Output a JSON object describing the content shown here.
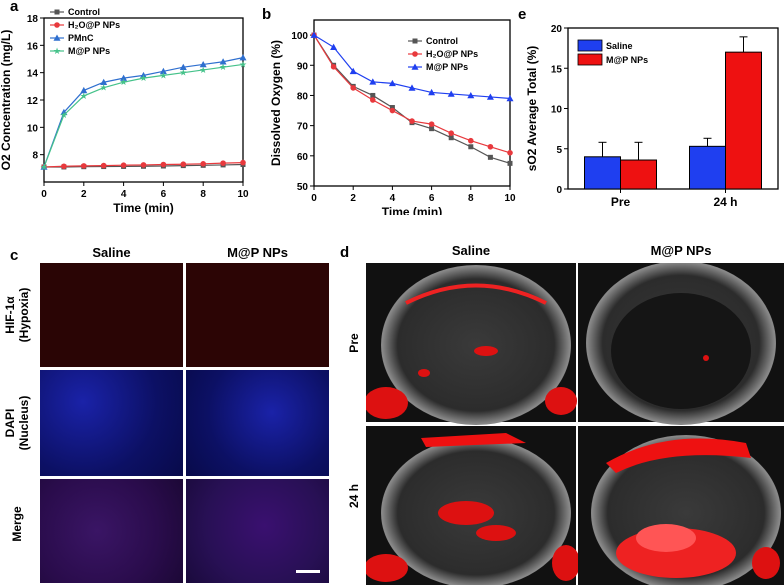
{
  "panels": {
    "a": "a",
    "b": "b",
    "c": "c",
    "d": "d",
    "e": "e"
  },
  "colors": {
    "control": "#555555",
    "h2o": "#e8393d",
    "pmnc": "#2f6fcf",
    "mp": "#45c28a",
    "blue": "#1f3ff0",
    "red": "#ee1111"
  },
  "chart_data": [
    {
      "id": "a",
      "type": "line",
      "title": "",
      "xlabel": "Time (min)",
      "ylabel": "O2 Concentration (mg/L)",
      "xlim": [
        0,
        10
      ],
      "ylim": [
        6,
        18
      ],
      "xticks": [
        0,
        2,
        4,
        6,
        8,
        10
      ],
      "yticks": [
        8,
        10,
        12,
        14,
        16,
        18
      ],
      "x": [
        0,
        1,
        2,
        3,
        4,
        5,
        6,
        7,
        8,
        9,
        10
      ],
      "series": [
        {
          "name": "Control",
          "marker": "square",
          "color": "#555555",
          "values": [
            7.1,
            7.1,
            7.12,
            7.13,
            7.14,
            7.15,
            7.17,
            7.2,
            7.22,
            7.25,
            7.28
          ]
        },
        {
          "name": "H₂O@P NPs",
          "marker": "circle",
          "color": "#e8393d",
          "values": [
            7.1,
            7.15,
            7.18,
            7.2,
            7.23,
            7.25,
            7.28,
            7.3,
            7.33,
            7.38,
            7.42
          ]
        },
        {
          "name": "PMnC",
          "marker": "triangle",
          "color": "#2f6fcf",
          "values": [
            7.1,
            11.1,
            12.7,
            13.3,
            13.6,
            13.8,
            14.1,
            14.4,
            14.6,
            14.8,
            15.1
          ]
        },
        {
          "name": "M@P NPs",
          "marker": "star",
          "color": "#45c28a",
          "values": [
            7.1,
            10.9,
            12.3,
            12.9,
            13.3,
            13.6,
            13.8,
            14.0,
            14.2,
            14.4,
            14.6
          ]
        }
      ]
    },
    {
      "id": "b",
      "type": "line",
      "title": "",
      "xlabel": "Time (min)",
      "ylabel": "Dissolved Oxygen (%)",
      "xlim": [
        0,
        10
      ],
      "ylim": [
        50,
        105
      ],
      "xticks": [
        0,
        2,
        4,
        6,
        8,
        10
      ],
      "yticks": [
        50,
        60,
        70,
        80,
        90,
        100
      ],
      "x": [
        0,
        1,
        2,
        3,
        4,
        5,
        6,
        7,
        8,
        9,
        10
      ],
      "series": [
        {
          "name": "Control",
          "marker": "square",
          "color": "#555555",
          "values": [
            100,
            90,
            83,
            80,
            76,
            71,
            69,
            66,
            63,
            59.5,
            57.5
          ]
        },
        {
          "name": "H₂O@P NPs",
          "marker": "circle",
          "color": "#e8393d",
          "values": [
            100,
            89.5,
            82.5,
            78.5,
            75,
            71.5,
            70.5,
            67.5,
            65,
            63,
            61
          ]
        },
        {
          "name": "M@P NPs",
          "marker": "triangle",
          "color": "#1f3ff0",
          "values": [
            100,
            96,
            88,
            84.5,
            84,
            82.5,
            81,
            80.5,
            80,
            79.5,
            79
          ]
        }
      ]
    },
    {
      "id": "e",
      "type": "bar",
      "title": "",
      "xlabel": "",
      "ylabel": "sO2 Average Total (%)",
      "ylim": [
        0,
        20
      ],
      "yticks": [
        0,
        5,
        10,
        15,
        20
      ],
      "categories": [
        "Pre",
        "24 h"
      ],
      "series": [
        {
          "name": "Saline",
          "color": "#1f3ff0",
          "values": [
            4.0,
            5.3
          ],
          "errors": [
            1.8,
            1.0
          ]
        },
        {
          "name": "M@P NPs",
          "color": "#ee1111",
          "values": [
            3.6,
            17.0
          ],
          "errors": [
            2.2,
            1.9
          ]
        }
      ]
    }
  ],
  "microscopy": {
    "col_headers": [
      "Saline",
      "M@P NPs"
    ],
    "row_labels": [
      {
        "line1": "HIF-1α",
        "line2": "(Hypoxia)"
      },
      {
        "line1": "DAPI",
        "line2": "(Nucleus)"
      },
      {
        "line1": "Merge",
        "line2": ""
      }
    ]
  },
  "ultrasound": {
    "col_headers": [
      "Saline",
      "M@P NPs"
    ],
    "row_labels": [
      "Pre",
      "24 h"
    ]
  }
}
